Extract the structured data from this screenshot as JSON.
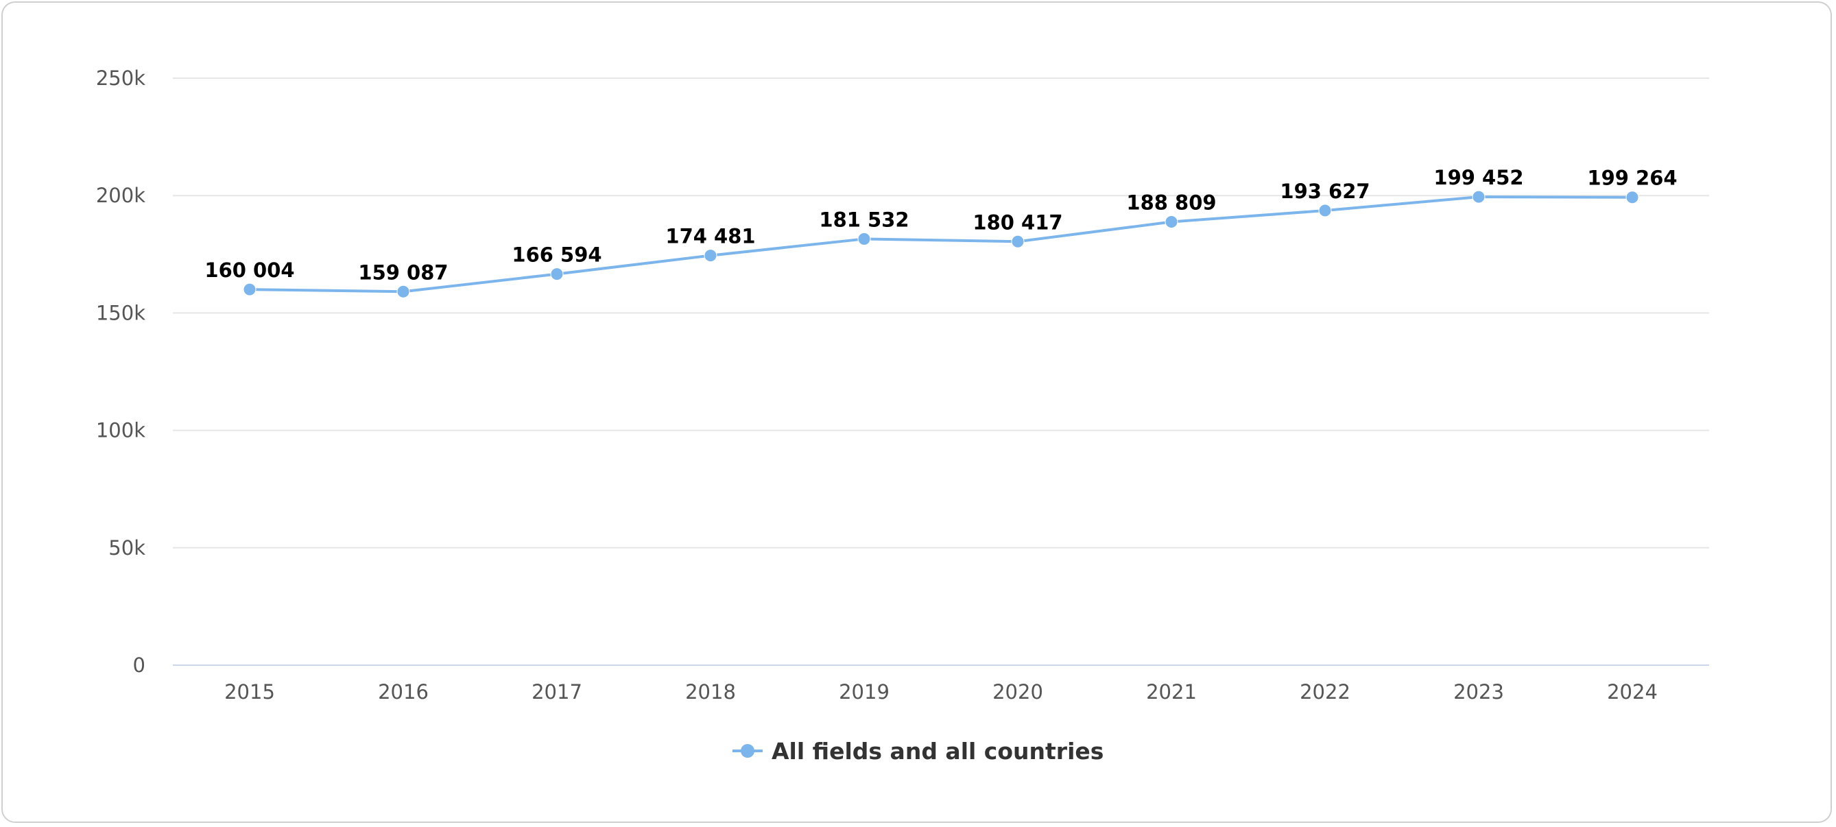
{
  "chart_data": {
    "type": "line",
    "title": "",
    "xlabel": "",
    "ylabel": "",
    "categories": [
      "2015",
      "2016",
      "2017",
      "2018",
      "2019",
      "2020",
      "2021",
      "2022",
      "2023",
      "2024"
    ],
    "series": [
      {
        "name": "All fields and all countries",
        "values": [
          160004,
          159087,
          166594,
          174481,
          181532,
          180417,
          188809,
          193627,
          199452,
          199264
        ],
        "data_labels": [
          "160 004",
          "159 087",
          "166 594",
          "174 481",
          "181 532",
          "180 417",
          "188 809",
          "193 627",
          "199 452",
          "199 264"
        ],
        "color": "#7cb5ec"
      }
    ],
    "ylim": [
      0,
      250000
    ],
    "y_ticks": [
      0,
      50000,
      100000,
      150000,
      200000,
      250000
    ],
    "y_tick_labels": [
      "0",
      "50k",
      "100k",
      "150k",
      "200k",
      "250k"
    ],
    "grid": true,
    "legend": "bottom-center",
    "colors": {
      "grid": "#e6e6e6",
      "x_axis": "#ccd6eb",
      "tick_text": "#555555",
      "label_text": "#000000",
      "legend_text": "#333333"
    }
  }
}
